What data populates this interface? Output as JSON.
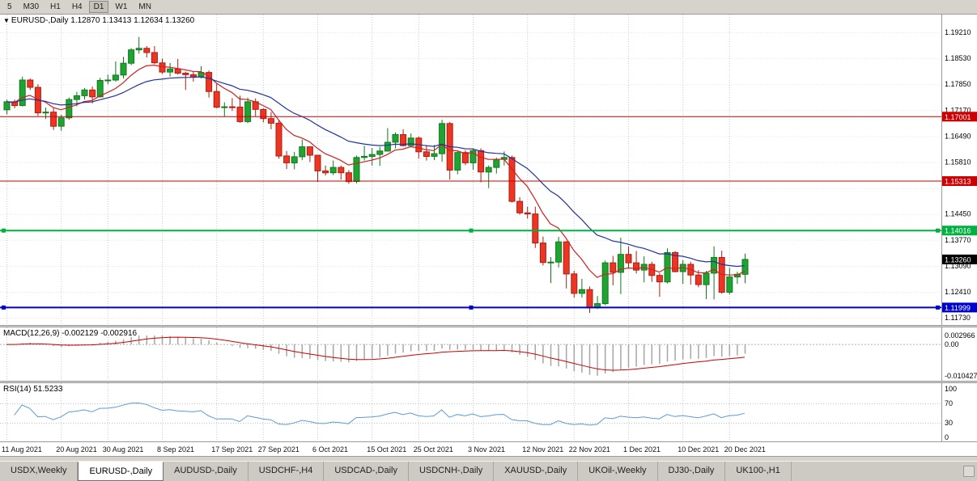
{
  "toolbar": {
    "buttons": [
      "5",
      "M30",
      "H1",
      "H4",
      "D1",
      "W1",
      "MN"
    ],
    "active": "D1"
  },
  "chart": {
    "marker": "▼",
    "symbol": "EURUSD-,Daily",
    "ohlc_text": "1.12870 1.13413 1.12634 1.13260"
  },
  "indicators": {
    "macd": {
      "label": "MACD(12,26,9) -0.002129 -0.002916",
      "value_main": -0.002129,
      "value_signal": -0.002916,
      "axis": [
        {
          "label": "0.002966",
          "value": 0.002966
        },
        {
          "label": "0.00",
          "value": 0
        },
        {
          "label": "-0.010427",
          "value": -0.010427
        }
      ],
      "max": 0.002966,
      "min": -0.010427
    },
    "rsi": {
      "label": "RSI(14) 51.5233",
      "value": 51.5233,
      "axis": [
        {
          "label": "100",
          "value": 100
        },
        {
          "label": "70",
          "value": 70
        },
        {
          "label": "30",
          "value": 30
        },
        {
          "label": "0",
          "value": 0
        }
      ],
      "levels": [
        70,
        30
      ]
    }
  },
  "chart_data": {
    "type": "candlestick",
    "symbol": "EURUSD",
    "timeframe": "Daily",
    "ohlc": [
      [
        1.1718,
        1.1745,
        1.1706,
        1.1739
      ],
      [
        1.1739,
        1.1745,
        1.1722,
        1.1729
      ],
      [
        1.1729,
        1.1805,
        1.1727,
        1.1796
      ],
      [
        1.1796,
        1.18,
        1.177,
        1.1777
      ],
      [
        1.1777,
        1.1785,
        1.1702,
        1.171
      ],
      [
        1.171,
        1.1724,
        1.1694,
        1.1712
      ],
      [
        1.1712,
        1.1722,
        1.1665,
        1.1675
      ],
      [
        1.1675,
        1.1705,
        1.1663,
        1.1697
      ],
      [
        1.1697,
        1.175,
        1.1692,
        1.1745
      ],
      [
        1.1745,
        1.1765,
        1.1727,
        1.1755
      ],
      [
        1.1755,
        1.1775,
        1.1745,
        1.177
      ],
      [
        1.177,
        1.1779,
        1.1735,
        1.1752
      ],
      [
        1.1752,
        1.1802,
        1.175,
        1.1795
      ],
      [
        1.1795,
        1.181,
        1.1785,
        1.1796
      ],
      [
        1.1796,
        1.1845,
        1.1792,
        1.1809
      ],
      [
        1.1809,
        1.1857,
        1.18,
        1.184
      ],
      [
        1.184,
        1.188,
        1.1835,
        1.1875
      ],
      [
        1.1875,
        1.1909,
        1.1865,
        1.1879
      ],
      [
        1.1879,
        1.1885,
        1.1855,
        1.1868
      ],
      [
        1.1868,
        1.1885,
        1.1838,
        1.1841
      ],
      [
        1.1841,
        1.1852,
        1.1812,
        1.1817
      ],
      [
        1.1817,
        1.1841,
        1.1805,
        1.1825
      ],
      [
        1.1825,
        1.1851,
        1.181,
        1.1814
      ],
      [
        1.1814,
        1.1818,
        1.177,
        1.181
      ],
      [
        1.181,
        1.182,
        1.1792,
        1.1805
      ],
      [
        1.1805,
        1.1832,
        1.18,
        1.1816
      ],
      [
        1.1816,
        1.1821,
        1.175,
        1.1766
      ],
      [
        1.1766,
        1.1788,
        1.1722,
        1.1725
      ],
      [
        1.1725,
        1.1738,
        1.17,
        1.1726
      ],
      [
        1.1726,
        1.1749,
        1.1715,
        1.1725
      ],
      [
        1.1725,
        1.1755,
        1.1684,
        1.1687
      ],
      [
        1.1687,
        1.175,
        1.1683,
        1.1739
      ],
      [
        1.1739,
        1.1748,
        1.1701,
        1.1719
      ],
      [
        1.1719,
        1.1722,
        1.1685,
        1.1695
      ],
      [
        1.1695,
        1.1712,
        1.1667,
        1.1683
      ],
      [
        1.1683,
        1.169,
        1.159,
        1.1597
      ],
      [
        1.1597,
        1.161,
        1.1563,
        1.1579
      ],
      [
        1.1579,
        1.1608,
        1.1562,
        1.1595
      ],
      [
        1.1595,
        1.164,
        1.1586,
        1.1621
      ],
      [
        1.1621,
        1.1622,
        1.1581,
        1.1599
      ],
      [
        1.1599,
        1.16,
        1.1529,
        1.1558
      ],
      [
        1.1558,
        1.1572,
        1.1546,
        1.1553
      ],
      [
        1.1553,
        1.1585,
        1.1547,
        1.1567
      ],
      [
        1.1567,
        1.1572,
        1.1535,
        1.1553
      ],
      [
        1.1553,
        1.156,
        1.1524,
        1.153
      ],
      [
        1.153,
        1.1598,
        1.1525,
        1.1593
      ],
      [
        1.1593,
        1.1624,
        1.1585,
        1.1596
      ],
      [
        1.1596,
        1.1618,
        1.1572,
        1.1601
      ],
      [
        1.1601,
        1.1621,
        1.1571,
        1.161
      ],
      [
        1.161,
        1.167,
        1.1609,
        1.1633
      ],
      [
        1.1633,
        1.1659,
        1.1617,
        1.1653
      ],
      [
        1.1653,
        1.1667,
        1.1622,
        1.1624
      ],
      [
        1.1624,
        1.1656,
        1.162,
        1.1644
      ],
      [
        1.1644,
        1.1648,
        1.159,
        1.1608
      ],
      [
        1.1608,
        1.1626,
        1.1585,
        1.1596
      ],
      [
        1.1596,
        1.1626,
        1.1586,
        1.1603
      ],
      [
        1.1603,
        1.1692,
        1.1582,
        1.1682
      ],
      [
        1.1682,
        1.1686,
        1.1535,
        1.156
      ],
      [
        1.156,
        1.1609,
        1.1549,
        1.1606
      ],
      [
        1.1606,
        1.1612,
        1.1573,
        1.1579
      ],
      [
        1.1579,
        1.1617,
        1.1561,
        1.1611
      ],
      [
        1.1611,
        1.1617,
        1.1528,
        1.1555
      ],
      [
        1.1555,
        1.1572,
        1.1513,
        1.1567
      ],
      [
        1.1567,
        1.1593,
        1.1551,
        1.1588
      ],
      [
        1.1588,
        1.1609,
        1.1572,
        1.1593
      ],
      [
        1.1593,
        1.1598,
        1.1475,
        1.1478
      ],
      [
        1.1478,
        1.1489,
        1.1443,
        1.1448
      ],
      [
        1.1448,
        1.1464,
        1.1433,
        1.1445
      ],
      [
        1.1445,
        1.1464,
        1.1356,
        1.1369
      ],
      [
        1.1369,
        1.1386,
        1.131,
        1.1318
      ],
      [
        1.1318,
        1.1332,
        1.1264,
        1.1319
      ],
      [
        1.1319,
        1.1385,
        1.1305,
        1.1372
      ],
      [
        1.1372,
        1.1374,
        1.125,
        1.1288
      ],
      [
        1.1288,
        1.1296,
        1.1226,
        1.1237
      ],
      [
        1.1237,
        1.1275,
        1.1226,
        1.1247
      ],
      [
        1.1247,
        1.1255,
        1.1186,
        1.1199
      ],
      [
        1.1199,
        1.123,
        1.1196,
        1.121
      ],
      [
        1.121,
        1.1323,
        1.1206,
        1.1317
      ],
      [
        1.1317,
        1.1335,
        1.1258,
        1.1292
      ],
      [
        1.1292,
        1.1383,
        1.1235,
        1.1339
      ],
      [
        1.1339,
        1.136,
        1.1302,
        1.1317
      ],
      [
        1.1317,
        1.1348,
        1.1289,
        1.1298
      ],
      [
        1.1298,
        1.1334,
        1.1266,
        1.1313
      ],
      [
        1.1313,
        1.132,
        1.1267,
        1.1284
      ],
      [
        1.1284,
        1.129,
        1.1228,
        1.1267
      ],
      [
        1.1267,
        1.1355,
        1.1263,
        1.1344
      ],
      [
        1.1344,
        1.1348,
        1.1292,
        1.1294
      ],
      [
        1.1294,
        1.1324,
        1.1262,
        1.1313
      ],
      [
        1.1313,
        1.132,
        1.126,
        1.1285
      ],
      [
        1.1285,
        1.1298,
        1.1253,
        1.126
      ],
      [
        1.126,
        1.1296,
        1.1222,
        1.129
      ],
      [
        1.129,
        1.136,
        1.1221,
        1.1331
      ],
      [
        1.1331,
        1.1349,
        1.1236,
        1.124
      ],
      [
        1.124,
        1.1304,
        1.1234,
        1.128
      ],
      [
        1.128,
        1.1294,
        1.1262,
        1.1287
      ],
      [
        1.1287,
        1.13413,
        1.12634,
        1.1326
      ]
    ],
    "date_ticks": [
      {
        "label": "11 Aug 2021",
        "index": 0
      },
      {
        "label": "20 Aug 2021",
        "index": 7
      },
      {
        "label": "30 Aug 2021",
        "index": 13
      },
      {
        "label": "8 Sep 2021",
        "index": 20
      },
      {
        "label": "17 Sep 2021",
        "index": 27
      },
      {
        "label": "27 Sep 2021",
        "index": 33
      },
      {
        "label": "6 Oct 2021",
        "index": 40
      },
      {
        "label": "15 Oct 2021",
        "index": 47
      },
      {
        "label": "25 Oct 2021",
        "index": 53
      },
      {
        "label": "3 Nov 2021",
        "index": 60
      },
      {
        "label": "12 Nov 2021",
        "index": 67
      },
      {
        "label": "22 Nov 2021",
        "index": 73
      },
      {
        "label": "1 Dec 2021",
        "index": 80
      },
      {
        "label": "10 Dec 2021",
        "index": 87
      },
      {
        "label": "20 Dec 2021",
        "index": 93
      }
    ],
    "price_axis": {
      "labels": [
        "1.19210",
        "1.18530",
        "1.17850",
        "1.17170",
        "1.16490",
        "1.15810",
        "1.14450",
        "1.13770",
        "1.13090",
        "1.12410",
        "1.11730"
      ],
      "extra_gridlines": [
        1.1513
      ],
      "top": 1.1921,
      "bottom": 1.1173,
      "step": 0.0068
    },
    "hlines": [
      {
        "price": 1.17001,
        "label": "1.17001",
        "color": "#cc0000",
        "width": 1,
        "handles": false
      },
      {
        "price": 1.15313,
        "label": "1.15313",
        "color": "#cc0000",
        "width": 1,
        "handles": false
      },
      {
        "price": 1.14016,
        "label": "1.14016",
        "color": "#00b140",
        "width": 2,
        "handles": true
      },
      {
        "price": 1.11999,
        "label": "1.11999",
        "color": "#0000cc",
        "width": 2,
        "handles": true
      }
    ],
    "current_price": {
      "price": 1.1326,
      "label": "1.13260",
      "color": "#000000"
    },
    "moving_averages": [
      {
        "name": "ma-fast",
        "period": 8,
        "color": "#d01f1f"
      },
      {
        "name": "ma-slow",
        "period": 20,
        "color": "#2231a0"
      }
    ]
  },
  "tabs": [
    {
      "label": "USDX,Weekly",
      "active": false
    },
    {
      "label": "EURUSD-,Daily",
      "active": true
    },
    {
      "label": "AUDUSD-,Daily",
      "active": false
    },
    {
      "label": "USDCHF-,H4",
      "active": false
    },
    {
      "label": "USDCAD-,Daily",
      "active": false
    },
    {
      "label": "USDCNH-,Daily",
      "active": false
    },
    {
      "label": "XAUUSD-,Daily",
      "active": false
    },
    {
      "label": "UKOil-,Weekly",
      "active": false
    },
    {
      "label": "DJ30-,Daily",
      "active": false
    },
    {
      "label": "UK100-,H1",
      "active": false
    }
  ],
  "colors": {
    "up": "#21a332",
    "up_border": "#0f7a1d",
    "down": "#ee3523",
    "down_border": "#a81f12",
    "grid_v": "#c9c9c9",
    "grid_h": "#e3e3e3",
    "axis_text": "#000000",
    "macd_hist": "#a6a6a6",
    "macd_signal": "#cc0000",
    "rsi_line": "#5b9bd5",
    "level_line": "#c0c0c0",
    "badge_text": "#ffffff"
  }
}
